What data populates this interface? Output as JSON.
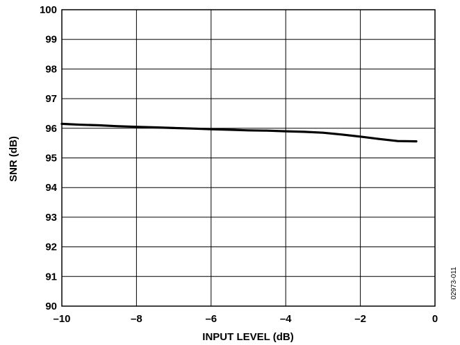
{
  "chart_data": {
    "type": "line",
    "title": "",
    "xlabel": "INPUT LEVEL (dB)",
    "ylabel": "SNR (dB)",
    "xlim": [
      -10,
      0
    ],
    "ylim": [
      90,
      100
    ],
    "x_ticks": [
      -10,
      -8,
      -6,
      -4,
      -2,
      0
    ],
    "x_tick_labels": [
      "–10",
      "–8",
      "–6",
      "–4",
      "–2",
      "0"
    ],
    "y_ticks": [
      90,
      91,
      92,
      93,
      94,
      95,
      96,
      97,
      98,
      99,
      100
    ],
    "y_tick_labels": [
      "90",
      "91",
      "92",
      "93",
      "94",
      "95",
      "96",
      "97",
      "98",
      "99",
      "100"
    ],
    "grid": true,
    "legend": "none",
    "series": [
      {
        "x": [
          -10,
          -9.5,
          -9,
          -8.5,
          -8,
          -7.5,
          -7,
          -6.5,
          -6,
          -5.5,
          -5,
          -4.5,
          -4,
          -3.5,
          -3,
          -2.5,
          -2,
          -1.5,
          -1,
          -0.5
        ],
        "y": [
          96.15,
          96.12,
          96.1,
          96.07,
          96.05,
          96.03,
          96.01,
          95.99,
          95.97,
          95.95,
          95.93,
          95.92,
          95.9,
          95.88,
          95.85,
          95.79,
          95.72,
          95.64,
          95.57,
          95.56
        ],
        "color": "#000000"
      }
    ]
  },
  "figure_id": "02973-011"
}
